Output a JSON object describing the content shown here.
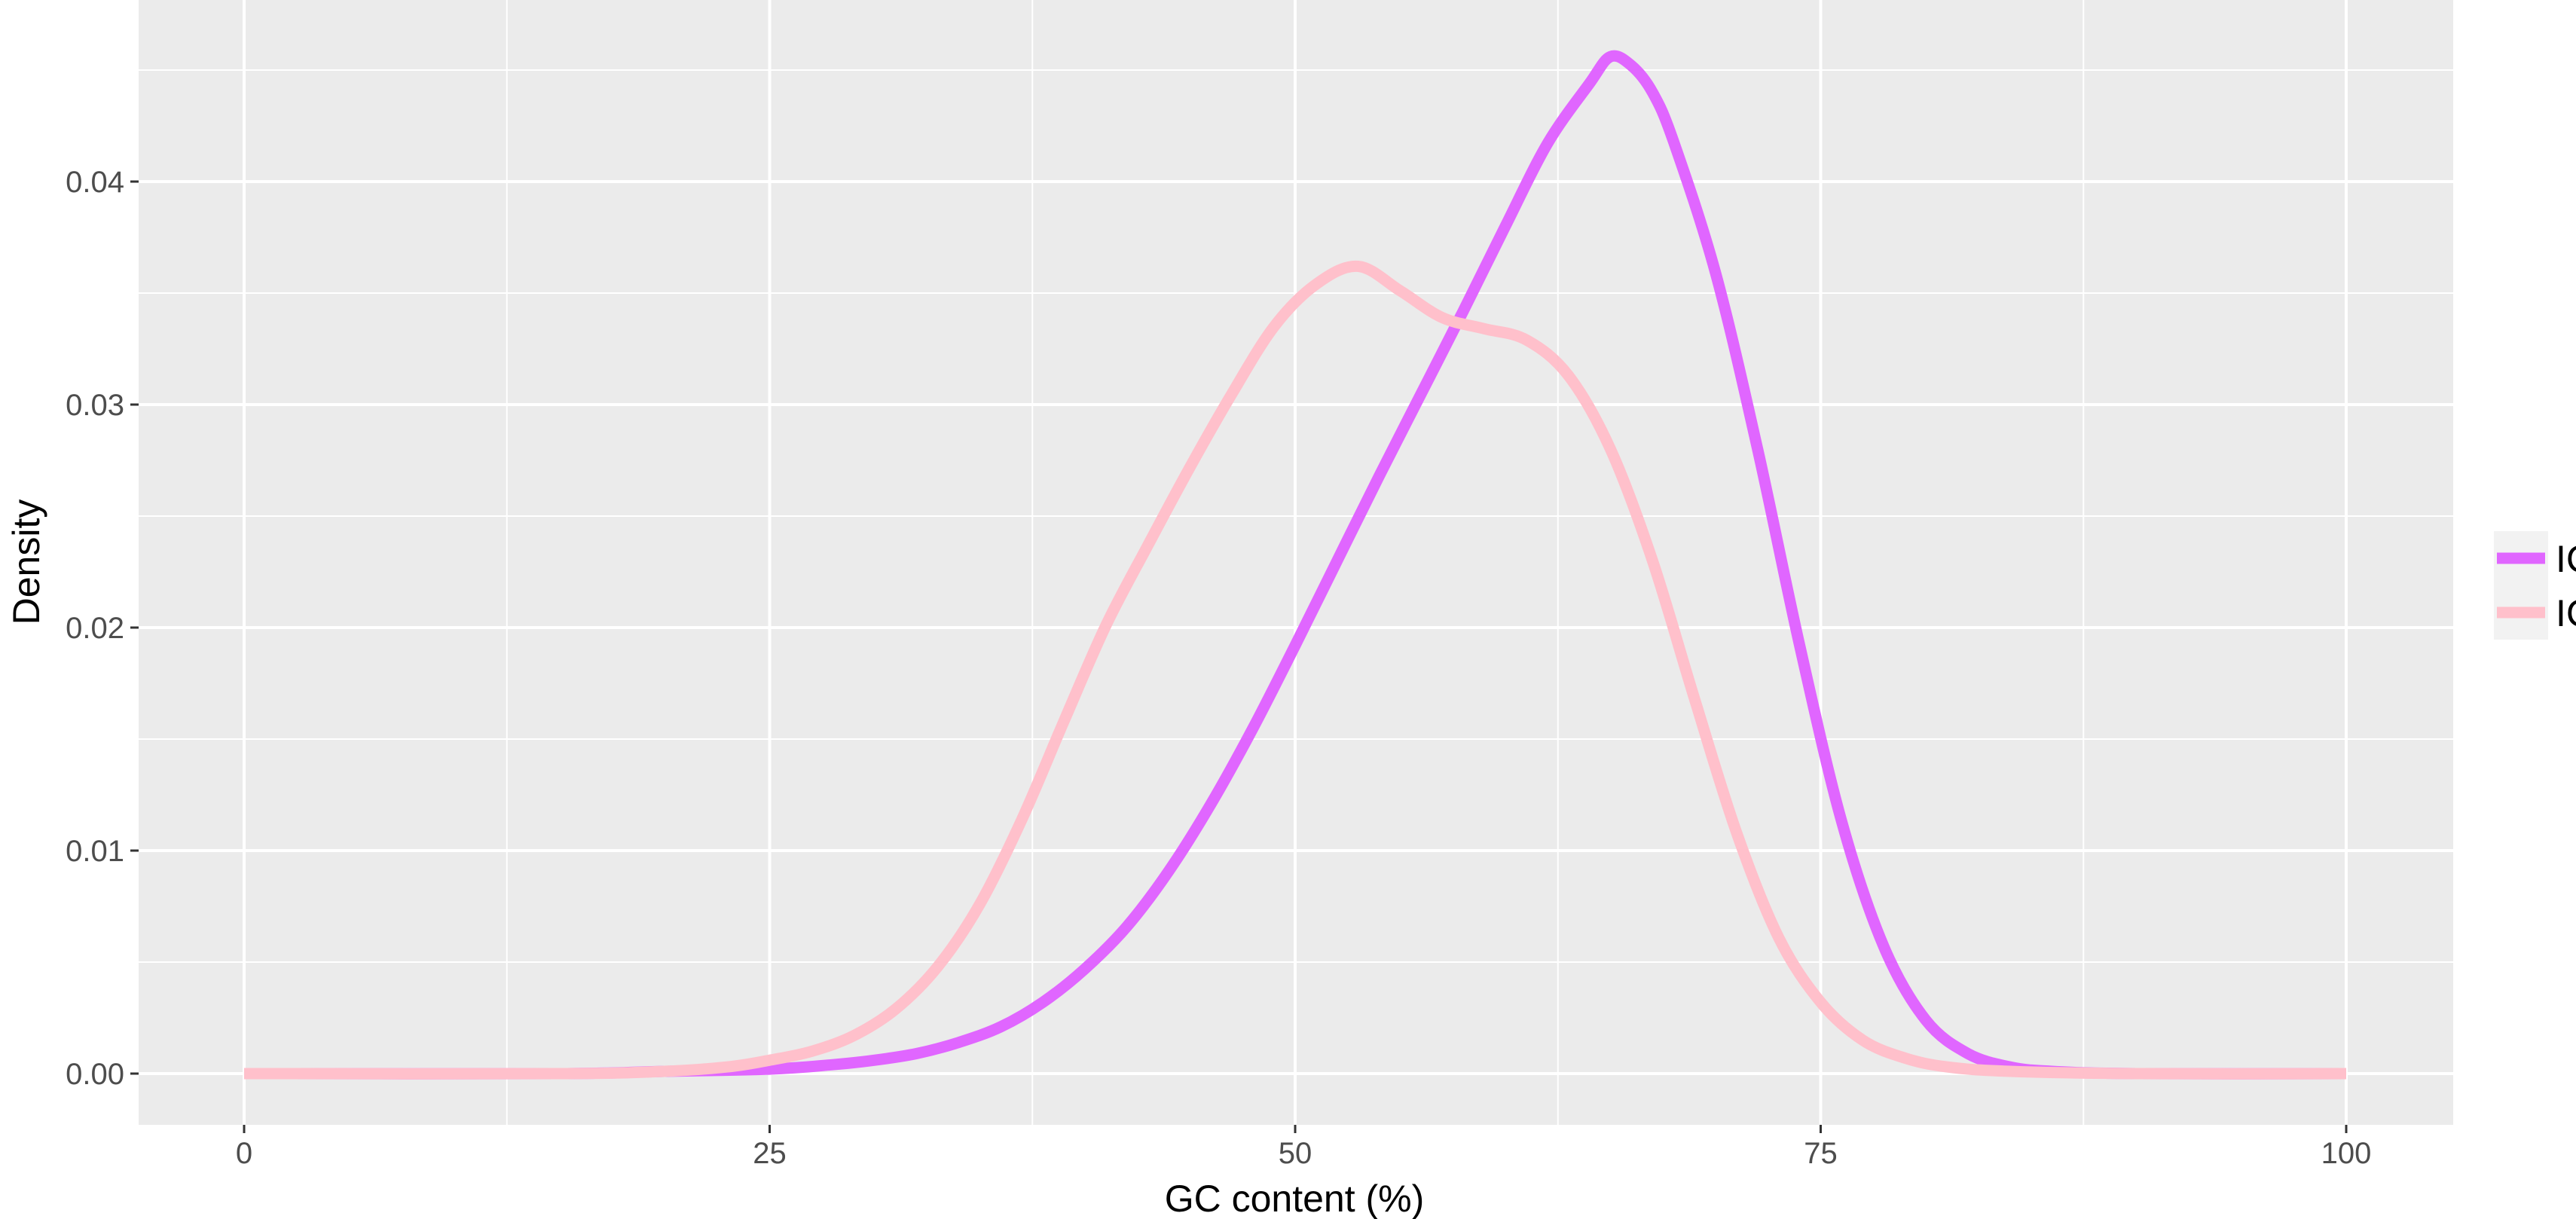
{
  "chart_data": {
    "type": "line",
    "title": "",
    "xlabel": "GC content (%)",
    "ylabel": "Density",
    "xlim": [
      -10,
      210
    ],
    "ylim": [
      -0.0023,
      0.0476
    ],
    "x_ticks": [
      0,
      25,
      50,
      75,
      100
    ],
    "y_ticks": [
      0.0,
      0.01,
      0.02,
      0.03,
      0.04
    ],
    "x_tick_labels": [
      "0",
      "25",
      "50",
      "75",
      "100"
    ],
    "y_tick_labels": [
      "0.00",
      "0.01",
      "0.02",
      "0.03",
      "0.04"
    ],
    "grid": true,
    "background": "#ebebeb",
    "legend": {
      "position": "right",
      "entries": [
        {
          "label": "IC",
          "color": "#e066ff"
        },
        {
          "label": "IC",
          "color": "#ffc0cb"
        }
      ]
    },
    "series": [
      {
        "color": "#e066ff",
        "points": [
          [
            0,
            0
          ],
          [
            15,
            0
          ],
          [
            20,
            0.0001
          ],
          [
            25,
            0.0002
          ],
          [
            28,
            0.0004
          ],
          [
            30,
            0.0006
          ],
          [
            32,
            0.0009
          ],
          [
            34,
            0.0014
          ],
          [
            36,
            0.0021
          ],
          [
            38,
            0.0032
          ],
          [
            40,
            0.0047
          ],
          [
            42,
            0.0066
          ],
          [
            44,
            0.0091
          ],
          [
            46,
            0.0121
          ],
          [
            48,
            0.0155
          ],
          [
            50,
            0.0192
          ],
          [
            52,
            0.023
          ],
          [
            54,
            0.0268
          ],
          [
            56,
            0.0305
          ],
          [
            58,
            0.0342
          ],
          [
            60,
            0.038
          ],
          [
            62,
            0.0417
          ],
          [
            64,
            0.0444
          ],
          [
            65,
            0.0456
          ],
          [
            66,
            0.0452
          ],
          [
            67,
            0.044
          ],
          [
            68,
            0.0418
          ],
          [
            70,
            0.0359
          ],
          [
            72,
            0.028
          ],
          [
            74,
            0.0192
          ],
          [
            76,
            0.0113
          ],
          [
            78,
            0.0057
          ],
          [
            80,
            0.0024
          ],
          [
            82,
            0.0009
          ],
          [
            84,
            0.0003
          ],
          [
            86,
            0.0001
          ],
          [
            90,
            0
          ],
          [
            100,
            0
          ]
        ]
      },
      {
        "color": "#ffc0cb",
        "points": [
          [
            0,
            0
          ],
          [
            15,
            0
          ],
          [
            20,
            0.0001
          ],
          [
            23,
            0.0003
          ],
          [
            25,
            0.0006
          ],
          [
            27,
            0.001
          ],
          [
            29,
            0.0017
          ],
          [
            31,
            0.0029
          ],
          [
            33,
            0.0048
          ],
          [
            35,
            0.0076
          ],
          [
            37,
            0.0114
          ],
          [
            39,
            0.0158
          ],
          [
            41,
            0.0201
          ],
          [
            43,
            0.0237
          ],
          [
            45,
            0.0272
          ],
          [
            47,
            0.0305
          ],
          [
            49,
            0.0335
          ],
          [
            51,
            0.0354
          ],
          [
            53,
            0.0362
          ],
          [
            55,
            0.0351
          ],
          [
            57,
            0.0339
          ],
          [
            59,
            0.0334
          ],
          [
            61,
            0.0329
          ],
          [
            63,
            0.0313
          ],
          [
            65,
            0.028
          ],
          [
            67,
            0.023
          ],
          [
            69,
            0.0168
          ],
          [
            71,
            0.0108
          ],
          [
            73,
            0.0061
          ],
          [
            75,
            0.0032
          ],
          [
            77,
            0.0015
          ],
          [
            79,
            0.0007
          ],
          [
            81,
            0.0003
          ],
          [
            84,
            0.0001
          ],
          [
            90,
            0
          ],
          [
            100,
            0
          ]
        ]
      }
    ]
  }
}
